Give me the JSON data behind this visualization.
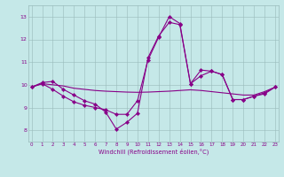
{
  "xlabel": "Windchill (Refroidissement éolien,°C)",
  "xlim_min": -0.3,
  "xlim_max": 23.3,
  "ylim_min": 7.5,
  "ylim_max": 13.5,
  "yticks": [
    8,
    9,
    10,
    11,
    12,
    13
  ],
  "xticks": [
    0,
    1,
    2,
    3,
    4,
    5,
    6,
    7,
    8,
    9,
    10,
    11,
    12,
    13,
    14,
    15,
    16,
    17,
    18,
    19,
    20,
    21,
    22,
    23
  ],
  "bg_color": "#c5e8e8",
  "grid_color": "#99bbbb",
  "line_color": "#880088",
  "curve_flat": [
    9.9,
    10.05,
    10.0,
    9.95,
    9.85,
    9.8,
    9.75,
    9.72,
    9.7,
    9.68,
    9.67,
    9.68,
    9.7,
    9.72,
    9.75,
    9.78,
    9.75,
    9.7,
    9.65,
    9.6,
    9.55,
    9.55,
    9.7,
    9.9
  ],
  "curve_low_hi": [
    9.9,
    10.1,
    10.15,
    9.8,
    9.55,
    9.3,
    9.15,
    8.8,
    8.05,
    8.35,
    8.75,
    11.2,
    12.15,
    12.75,
    12.65,
    10.05,
    10.4,
    10.6,
    10.45,
    9.35,
    9.35,
    9.5,
    9.6,
    9.9
  ],
  "curve_mid": [
    9.9,
    10.05,
    9.8,
    9.5,
    9.25,
    9.1,
    9.0,
    8.9,
    8.7,
    8.7,
    9.3,
    11.1,
    12.1,
    13.0,
    12.7,
    10.05,
    10.65,
    10.6,
    10.45,
    9.35,
    9.35,
    9.5,
    9.65,
    9.9
  ]
}
